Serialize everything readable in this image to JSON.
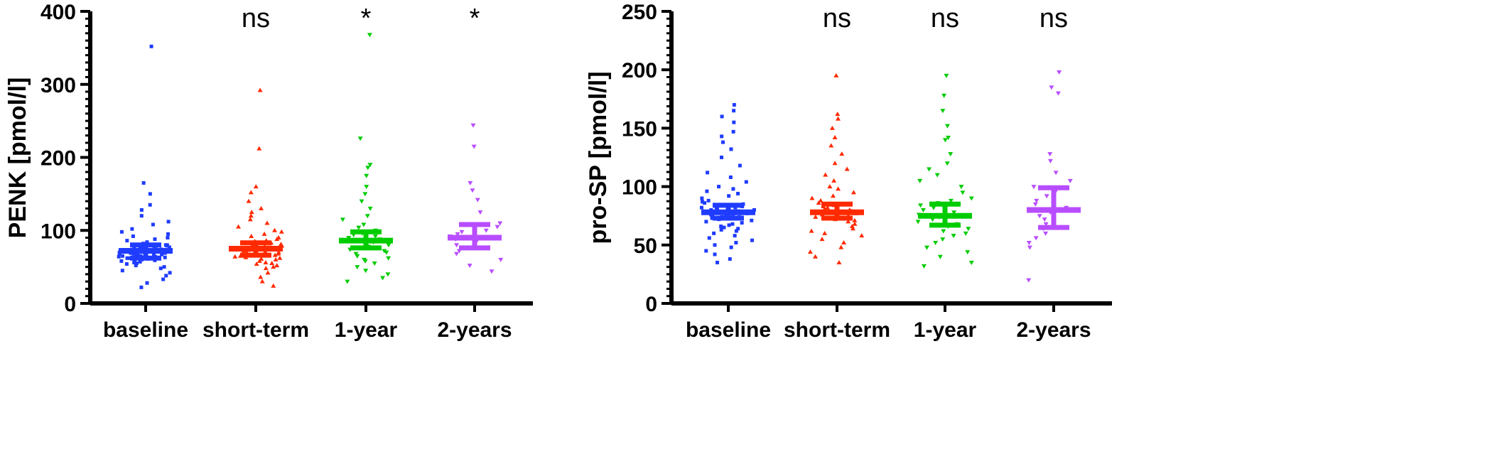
{
  "chart_data": [
    {
      "type": "scatter",
      "subtype": "dot-plot with median and interquartile range",
      "ylabel": "PENK [pmol/l]",
      "ylim": [
        0,
        400
      ],
      "yticks": [
        0,
        100,
        200,
        300,
        400
      ],
      "ytick_labels": [
        "0",
        "100",
        "200",
        "300",
        "400"
      ],
      "categories": [
        "baseline",
        "short-term",
        "1-year",
        "2-years"
      ],
      "significance": [
        "",
        "ns",
        "*",
        "*"
      ],
      "series": [
        {
          "color": "#1f3cff",
          "marker": "square",
          "median": 72,
          "iqr": [
            62,
            80
          ],
          "values": [
            22,
            28,
            33,
            38,
            42,
            45,
            48,
            50,
            52,
            54,
            55,
            56,
            57,
            58,
            59,
            60,
            60,
            61,
            62,
            62,
            63,
            63,
            64,
            64,
            65,
            65,
            66,
            66,
            67,
            67,
            68,
            68,
            69,
            69,
            70,
            70,
            71,
            71,
            72,
            72,
            73,
            73,
            74,
            74,
            75,
            75,
            76,
            76,
            77,
            78,
            78,
            79,
            80,
            80,
            82,
            84,
            86,
            88,
            90,
            92,
            95,
            98,
            102,
            108,
            112,
            120,
            128,
            135,
            150,
            165,
            352
          ]
        },
        {
          "color": "#ff2a00",
          "marker": "triangle-up",
          "median": 75,
          "iqr": [
            66,
            83
          ],
          "values": [
            24,
            30,
            36,
            42,
            48,
            50,
            52,
            54,
            55,
            56,
            58,
            60,
            61,
            62,
            63,
            64,
            65,
            66,
            67,
            68,
            69,
            70,
            71,
            72,
            73,
            74,
            75,
            76,
            77,
            78,
            79,
            80,
            81,
            82,
            83,
            84,
            85,
            86,
            88,
            90,
            92,
            95,
            98,
            100,
            105,
            110,
            115,
            120,
            125,
            130,
            140,
            152,
            160,
            212,
            292
          ]
        },
        {
          "color": "#00cc00",
          "marker": "triangle-down",
          "median": 86,
          "iqr": [
            76,
            98
          ],
          "values": [
            30,
            35,
            40,
            45,
            50,
            55,
            58,
            60,
            62,
            65,
            68,
            70,
            72,
            74,
            76,
            78,
            80,
            82,
            84,
            86,
            88,
            90,
            92,
            94,
            96,
            98,
            100,
            104,
            108,
            115,
            120,
            130,
            140,
            150,
            160,
            175,
            186,
            190,
            226,
            368
          ]
        },
        {
          "color": "#b84dff",
          "marker": "triangle-down",
          "median": 90,
          "iqr": [
            76,
            108
          ],
          "values": [
            44,
            52,
            60,
            68,
            72,
            76,
            80,
            85,
            88,
            90,
            92,
            95,
            98,
            100,
            105,
            110,
            125,
            142,
            155,
            165,
            215,
            244
          ]
        }
      ]
    },
    {
      "type": "scatter",
      "subtype": "dot-plot with median and interquartile range",
      "ylabel": "pro-SP [pmol/l]",
      "ylim": [
        0,
        250
      ],
      "yticks": [
        0,
        50,
        100,
        150,
        200,
        250
      ],
      "ytick_labels": [
        "0",
        "50",
        "100",
        "150",
        "200",
        "250"
      ],
      "categories": [
        "baseline",
        "short-term",
        "1-year",
        "2-years"
      ],
      "significance": [
        "",
        "ns",
        "ns",
        "ns"
      ],
      "series": [
        {
          "color": "#1f3cff",
          "marker": "square",
          "median": 78,
          "iqr": [
            73,
            84
          ],
          "values": [
            35,
            38,
            42,
            45,
            48,
            50,
            52,
            54,
            56,
            58,
            60,
            62,
            63,
            64,
            65,
            66,
            67,
            68,
            69,
            70,
            71,
            72,
            73,
            74,
            74,
            75,
            75,
            76,
            76,
            77,
            77,
            78,
            78,
            79,
            79,
            80,
            80,
            81,
            81,
            82,
            82,
            83,
            84,
            85,
            86,
            87,
            88,
            90,
            92,
            94,
            96,
            98,
            100,
            104,
            108,
            112,
            118,
            125,
            132,
            138,
            143,
            147,
            155,
            160,
            165,
            170
          ]
        },
        {
          "color": "#ff2a00",
          "marker": "triangle-up",
          "median": 78,
          "iqr": [
            73,
            85
          ],
          "values": [
            35,
            40,
            44,
            48,
            52,
            55,
            58,
            60,
            62,
            64,
            66,
            68,
            70,
            71,
            72,
            73,
            74,
            75,
            76,
            77,
            78,
            79,
            80,
            81,
            82,
            83,
            84,
            85,
            86,
            88,
            90,
            92,
            95,
            98,
            100,
            105,
            110,
            115,
            120,
            128,
            135,
            142,
            150,
            158,
            162,
            195
          ]
        },
        {
          "color": "#00cc00",
          "marker": "triangle-down",
          "median": 75,
          "iqr": [
            67,
            85
          ],
          "values": [
            32,
            35,
            40,
            44,
            48,
            52,
            55,
            58,
            60,
            62,
            64,
            66,
            68,
            70,
            72,
            74,
            75,
            76,
            78,
            80,
            82,
            84,
            86,
            88,
            90,
            95,
            100,
            105,
            110,
            115,
            120,
            128,
            140,
            142,
            152,
            165,
            178,
            195
          ]
        },
        {
          "color": "#b84dff",
          "marker": "triangle-down",
          "median": 80,
          "iqr": [
            65,
            99
          ],
          "values": [
            20,
            48,
            52,
            56,
            60,
            64,
            68,
            72,
            75,
            78,
            80,
            82,
            85,
            88,
            92,
            96,
            100,
            105,
            112,
            122,
            128,
            180,
            185,
            198
          ]
        }
      ]
    }
  ]
}
